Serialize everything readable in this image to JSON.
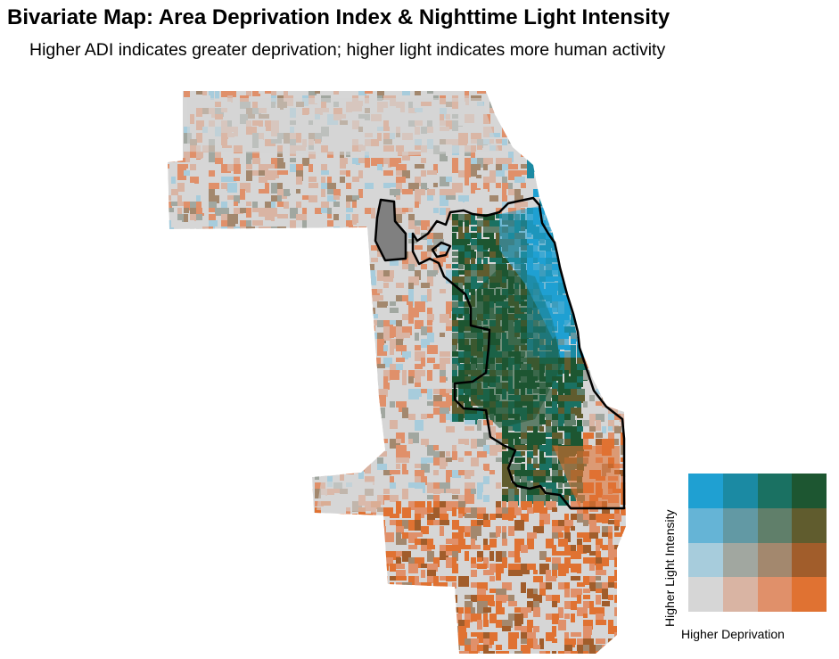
{
  "title": "Bivariate Map: Area Deprivation Index & Nighttime Light Intensity",
  "subtitle": "Higher ADI indicates greater deprivation; higher light indicates more human activity",
  "legend": {
    "y_label": "Higher Light Intensity",
    "x_label": "Higher Deprivation",
    "rows_top_to_bottom": [
      [
        "#1fa0d2",
        "#1b8aa3",
        "#1a7162",
        "#1d5631"
      ],
      [
        "#65b4d6",
        "#6299a4",
        "#607f6a",
        "#605c2e"
      ],
      [
        "#a7ccdc",
        "#a1a7a0",
        "#a3886e",
        "#a15d2b"
      ],
      [
        "#d6d6d6",
        "#d9b4a3",
        "#e0906a",
        "#e07232"
      ]
    ]
  },
  "palette": {
    "base_gray": "#d6d6d6",
    "boundary": "#000000",
    "ohare_enclave": "#808080"
  }
}
